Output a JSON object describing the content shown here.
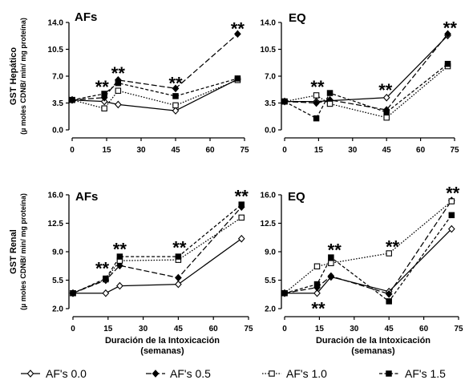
{
  "colors": {
    "ink": "#000000",
    "background": "#ffffff"
  },
  "chart_data": [
    {
      "type": "line",
      "title": "AFs",
      "ylabel": [
        "GST Hepático",
        "(µ moles CDNB/ min/ mg proteína)"
      ],
      "xlim": [
        0,
        75
      ],
      "ylim": [
        0,
        14
      ],
      "xticks": [
        "0",
        "15",
        "30",
        "45",
        "60",
        "75"
      ],
      "yticks": [
        "0.0",
        "3.5",
        "7.0",
        "10.5",
        "14.0"
      ],
      "grid": false,
      "x": [
        0,
        14,
        20,
        45,
        72
      ],
      "series": [
        {
          "name": "AF's 0.0",
          "line": "solid",
          "marker": "open-diamond",
          "values": [
            3.9,
            3.7,
            3.3,
            2.5,
            6.6
          ]
        },
        {
          "name": "AF's 0.5",
          "line": "long-dash",
          "marker": "filled-diamond",
          "values": [
            3.9,
            4.2,
            6.5,
            5.4,
            12.5
          ]
        },
        {
          "name": "AF's 1.0",
          "line": "dotted",
          "marker": "open-square",
          "values": [
            3.9,
            2.8,
            5.1,
            3.2,
            6.5
          ]
        },
        {
          "name": "AF's 1.5",
          "line": "dashed",
          "marker": "filled-square",
          "values": [
            3.9,
            4.7,
            6.1,
            4.4,
            6.7
          ]
        }
      ],
      "annotations": [
        {
          "x": 13,
          "y": 6.1,
          "text": "**"
        },
        {
          "x": 20,
          "y": 7.9,
          "text": "**"
        },
        {
          "x": 45,
          "y": 6.6,
          "text": "**"
        },
        {
          "x": 72,
          "y": 13.7,
          "text": "**"
        }
      ]
    },
    {
      "type": "line",
      "title": "EQ",
      "xlim": [
        0,
        75
      ],
      "ylim": [
        0,
        14
      ],
      "xticks": [
        "0",
        "15",
        "30",
        "45",
        "60",
        "75"
      ],
      "yticks": [
        "0.0",
        "3.5",
        "7.0",
        "10.5",
        "14.0"
      ],
      "grid": false,
      "x": [
        0,
        14,
        20,
        45,
        72
      ],
      "series": [
        {
          "name": "AF's 0.0",
          "line": "solid",
          "marker": "open-diamond",
          "values": [
            3.7,
            3.7,
            3.8,
            4.2,
            12.3
          ]
        },
        {
          "name": "AF's 0.5",
          "line": "long-dash",
          "marker": "filled-diamond",
          "values": [
            3.7,
            3.5,
            3.9,
            2.6,
            12.5
          ]
        },
        {
          "name": "AF's 1.0",
          "line": "dotted",
          "marker": "open-square",
          "values": [
            3.7,
            4.5,
            3.4,
            1.6,
            8.3
          ]
        },
        {
          "name": "AF's 1.5",
          "line": "dashed",
          "marker": "filled-square",
          "values": [
            3.7,
            1.5,
            4.8,
            2.3,
            8.6
          ]
        }
      ],
      "annotations": [
        {
          "x": 14.5,
          "y": 6.1,
          "text": "**"
        },
        {
          "x": 44.5,
          "y": 5.7,
          "text": "**"
        },
        {
          "x": 73,
          "y": 13.8,
          "text": "**"
        }
      ]
    },
    {
      "type": "line",
      "title": "AFs",
      "ylabel": [
        "GST Renal",
        "(µ moles CDNB/ min/ mg proteína)"
      ],
      "xlabel": [
        "Duración de la Intoxicación",
        "(semanas)"
      ],
      "xlim": [
        0,
        75
      ],
      "ylim": [
        2,
        16
      ],
      "xticks": [
        "0",
        "15",
        "30",
        "45",
        "60",
        "75"
      ],
      "yticks": [
        "2.0",
        "5.5",
        "9.0",
        "12.5",
        "16.0"
      ],
      "grid": false,
      "x": [
        0,
        14,
        20,
        45,
        72
      ],
      "series": [
        {
          "name": "AF's 0.0",
          "line": "solid",
          "marker": "open-diamond",
          "values": [
            3.9,
            3.9,
            4.8,
            5.0,
            10.6
          ]
        },
        {
          "name": "AF's 0.5",
          "line": "long-dash",
          "marker": "filled-diamond",
          "values": [
            3.9,
            5.5,
            7.3,
            5.8,
            14.5
          ]
        },
        {
          "name": "AF's 1.0",
          "line": "dotted",
          "marker": "open-square",
          "values": [
            3.9,
            5.6,
            7.9,
            8.0,
            13.2
          ]
        },
        {
          "name": "AF's 1.5",
          "line": "dashed",
          "marker": "filled-square",
          "values": [
            3.9,
            5.7,
            8.4,
            8.4,
            14.8
          ]
        }
      ],
      "annotations": [
        {
          "x": 12.5,
          "y": 7.4,
          "text": "**"
        },
        {
          "x": 20,
          "y": 9.8,
          "text": "**"
        },
        {
          "x": 45.5,
          "y": 10.0,
          "text": "**"
        },
        {
          "x": 72,
          "y": 16.3,
          "text": "**"
        }
      ]
    },
    {
      "type": "line",
      "title": "EQ",
      "xlabel": [
        "Duración de la Intoxicación",
        "(semanas)"
      ],
      "xlim": [
        0,
        75
      ],
      "ylim": [
        2,
        16
      ],
      "xticks": [
        "0",
        "15",
        "30",
        "45",
        "60",
        "75"
      ],
      "yticks": [
        "2.0",
        "5.5",
        "9.0",
        "12.5",
        "16.0"
      ],
      "grid": false,
      "x": [
        0,
        14,
        20,
        45,
        72
      ],
      "series": [
        {
          "name": "AF's 0.0",
          "line": "solid",
          "marker": "open-diamond",
          "values": [
            3.9,
            3.9,
            5.9,
            4.1,
            11.8
          ]
        },
        {
          "name": "AF's 0.5",
          "line": "long-dash",
          "marker": "filled-diamond",
          "values": [
            3.9,
            4.6,
            6.0,
            3.8,
            15.3
          ]
        },
        {
          "name": "AF's 1.0",
          "line": "dotted",
          "marker": "open-square",
          "values": [
            3.9,
            7.2,
            7.6,
            8.8,
            15.2
          ]
        },
        {
          "name": "AF's 1.5",
          "line": "dashed",
          "marker": "filled-square",
          "values": [
            3.9,
            5.0,
            8.3,
            2.9,
            13.5
          ]
        }
      ],
      "annotations": [
        {
          "x": 21.5,
          "y": 9.7,
          "text": "**"
        },
        {
          "x": 14.5,
          "y": 2.5,
          "text": "**"
        },
        {
          "x": 46.5,
          "y": 10.1,
          "text": "**"
        },
        {
          "x": 72.5,
          "y": 16.7,
          "text": "**"
        }
      ]
    }
  ],
  "legend": {
    "placement": "bottom",
    "items": [
      {
        "label": "AF's 0.0",
        "line": "solid",
        "marker": "open-diamond"
      },
      {
        "label": "AF's 0.5",
        "line": "long-dash",
        "marker": "filled-diamond"
      },
      {
        "label": "AF's 1.0",
        "line": "dotted",
        "marker": "open-square"
      },
      {
        "label": "AF's 1.5",
        "line": "dashed",
        "marker": "filled-square"
      }
    ]
  }
}
